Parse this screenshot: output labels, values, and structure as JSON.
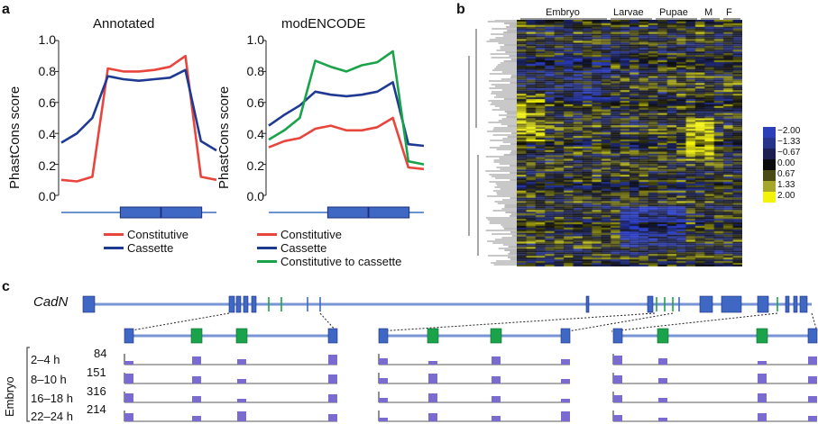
{
  "panels": {
    "a": "a",
    "b": "b",
    "c": "c"
  },
  "panel_a": {
    "left_title": "Annotated",
    "right_title": "modENCODE",
    "ylabel": "PhastCons score",
    "yticks": [
      "1.0",
      "0.8",
      "0.6",
      "0.4",
      "0.2",
      "0.0"
    ],
    "left_legend": [
      "Constitutive",
      "Cassette"
    ],
    "right_legend": [
      "Constitutive",
      "Cassette",
      "Constitutive to cassette"
    ],
    "colors": {
      "constitutive": "#e8453c",
      "cassette": "#1f3a93",
      "const_to_cassette": "#1aa34a"
    }
  },
  "panel_b": {
    "headers": [
      "Embryo",
      "Larvae",
      "Pupae",
      "M",
      "F"
    ],
    "colorbar": [
      "−2.00",
      "−1.33",
      "−0.67",
      "0.00",
      "0.67",
      "1.33",
      "2.00"
    ],
    "colors": [
      "#2b3fb8",
      "#26348a",
      "#1b2050",
      "#0b0b0b",
      "#4a4a15",
      "#a6a62a",
      "#f2f20a"
    ]
  },
  "panel_c": {
    "gene": "CadN",
    "stage_label": "Embryo",
    "time_labels": [
      "2–4 h",
      "8–10 h",
      "16–18 h",
      "22–24 h"
    ],
    "max_values": [
      "84",
      "151",
      "316",
      "214"
    ]
  },
  "chart_data": [
    {
      "type": "line",
      "title": "Annotated",
      "ylabel": "PhastCons score",
      "ylim": [
        0,
        1
      ],
      "x": [
        0,
        0.1,
        0.2,
        0.3,
        0.4,
        0.5,
        0.6,
        0.7,
        0.8,
        0.9,
        1.0
      ],
      "series": [
        {
          "name": "Constitutive",
          "values": [
            0.1,
            0.09,
            0.12,
            0.82,
            0.8,
            0.8,
            0.81,
            0.83,
            0.9,
            0.12,
            0.1
          ]
        },
        {
          "name": "Cassette",
          "values": [
            0.34,
            0.4,
            0.5,
            0.77,
            0.75,
            0.74,
            0.75,
            0.76,
            0.81,
            0.35,
            0.29
          ]
        }
      ]
    },
    {
      "type": "line",
      "title": "modENCODE",
      "ylabel": "PhastCons score",
      "ylim": [
        0,
        1
      ],
      "x": [
        0,
        0.1,
        0.2,
        0.3,
        0.4,
        0.5,
        0.6,
        0.7,
        0.8,
        0.9,
        1.0
      ],
      "series": [
        {
          "name": "Constitutive",
          "values": [
            0.31,
            0.35,
            0.37,
            0.43,
            0.45,
            0.42,
            0.42,
            0.44,
            0.5,
            0.18,
            0.17
          ]
        },
        {
          "name": "Cassette",
          "values": [
            0.45,
            0.52,
            0.58,
            0.67,
            0.65,
            0.64,
            0.65,
            0.67,
            0.73,
            0.33,
            0.32
          ]
        },
        {
          "name": "Constitutive to cassette",
          "values": [
            0.36,
            0.42,
            0.5,
            0.87,
            0.83,
            0.8,
            0.84,
            0.86,
            0.93,
            0.22,
            0.2
          ]
        }
      ]
    }
  ]
}
